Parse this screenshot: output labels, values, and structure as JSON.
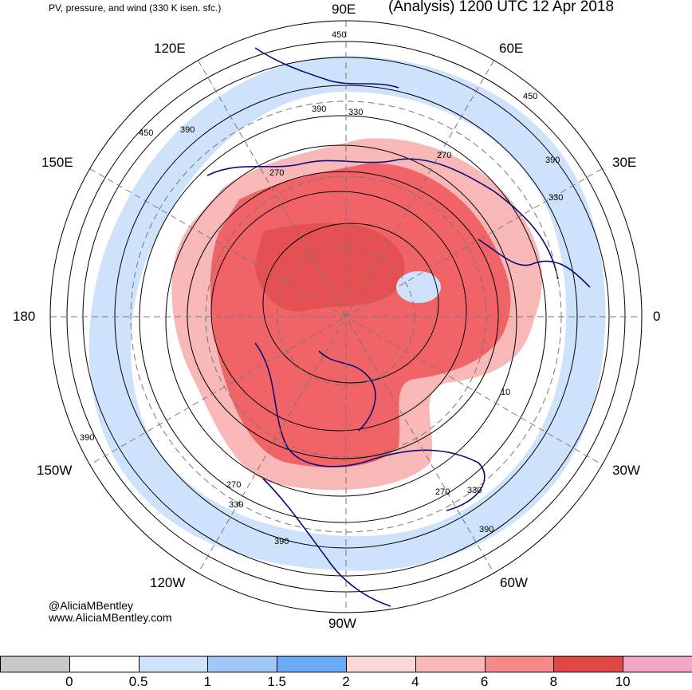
{
  "header": {
    "subtitle": "PV, pressure, and wind (330 K isen. sfc.)",
    "title": "(Analysis) 1200 UTC 12 Apr 2018"
  },
  "map": {
    "projection": "north-polar-stereographic",
    "longitude_labels": {
      "e90": "90E",
      "e60": "60E",
      "e30": "30E",
      "zero": "0",
      "w30": "30W",
      "w60": "60W",
      "w90": "90W",
      "w120": "120W",
      "w150": "150W",
      "dateline": "180",
      "e150": "150E",
      "e120": "120E"
    },
    "contour_labels": {
      "c1": "450",
      "c2": "390",
      "c3": "330",
      "c4": "270",
      "c5": "450",
      "c6": "390",
      "c7": "270",
      "c8": "450",
      "c9": "390",
      "c10": "330",
      "c11": "10",
      "c12": "390",
      "c13": "270",
      "c14": "330",
      "c15": "390",
      "c16": "270",
      "c17": "330",
      "c18": "390"
    },
    "colors": {
      "coastline": "#0a0a7a",
      "contour": "#000000",
      "grid": "#777777",
      "pv_high": "#f06468",
      "pv_mid": "#f8b8b8",
      "pv_low": "#cfe2fb"
    }
  },
  "credits": {
    "handle": "@AliciaMBentley",
    "site": "www.AliciaMBentley.com"
  },
  "colorbar": {
    "colors": [
      "#c8c8c8",
      "#ffffff",
      "#cfe2fb",
      "#9ec8f8",
      "#6aaaf6",
      "#fbd9d6",
      "#f8b8b8",
      "#f38a88",
      "#e04848",
      "#f4a6c8"
    ],
    "ticks": [
      "0",
      "0.5",
      "1",
      "1.5",
      "2",
      "4",
      "6",
      "8",
      "10"
    ]
  }
}
